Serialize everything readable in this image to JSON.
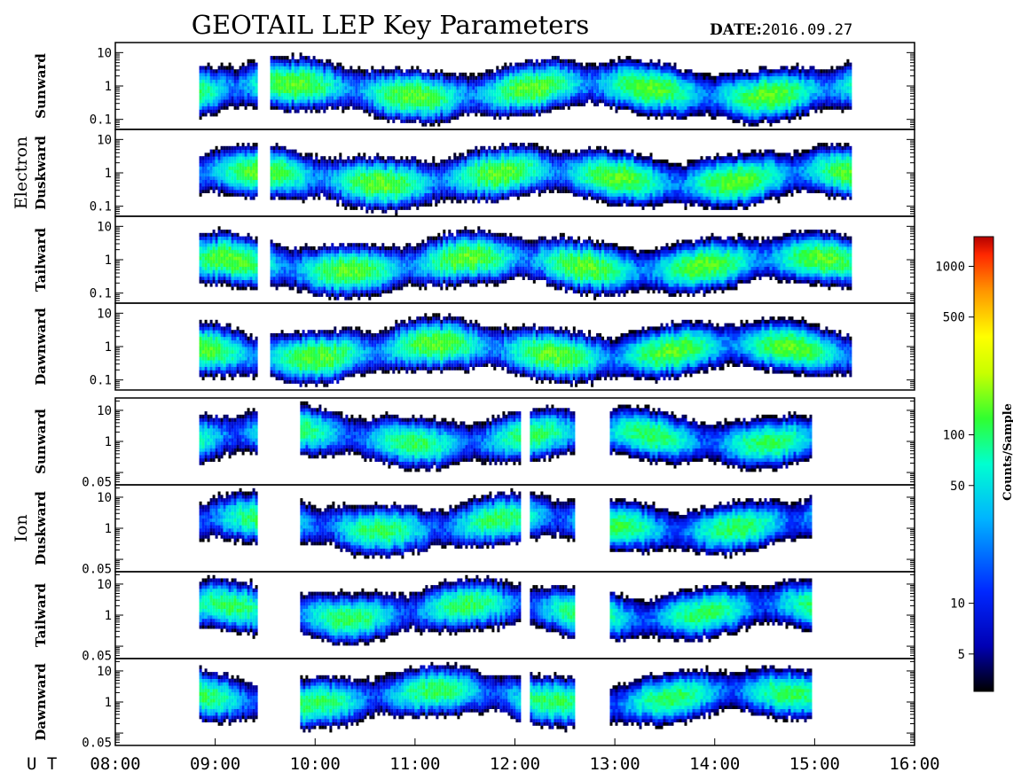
{
  "title": "GEOTAIL LEP Key Parameters",
  "date_label": "DATE:",
  "date_value": "2016.09.27",
  "colorbar": {
    "label": "Counts/Sample",
    "scale": "log",
    "range": [
      3,
      1500
    ],
    "ticks": [
      "5",
      "10",
      "50",
      "100",
      "500",
      "1000"
    ],
    "tick_values": [
      5,
      10,
      50,
      100,
      500,
      1000
    ],
    "colormap": [
      "#000000",
      "#0000b4",
      "#0028ff",
      "#00b4ff",
      "#00ffd0",
      "#30ff30",
      "#c8ff00",
      "#ffff00",
      "#ff9600",
      "#ff2800",
      "#b40000"
    ]
  },
  "chart_data": {
    "type": "heatmap",
    "time_axis": {
      "label": "U T",
      "ticks": [
        "08:00",
        "09:00",
        "10:00",
        "11:00",
        "12:00",
        "13:00",
        "14:00",
        "15:00",
        "16:00"
      ],
      "range_hours": [
        8,
        16
      ]
    },
    "groups": [
      {
        "name": "Electron",
        "panels": [
          {
            "name": "Sunward",
            "y_ticks": [
              "10",
              "1",
              "0.1"
            ]
          },
          {
            "name": "Duskward",
            "y_ticks": [
              "10",
              "1",
              "0.1"
            ]
          },
          {
            "name": "Tailward",
            "y_ticks": [
              "10",
              "1",
              "0.1"
            ]
          },
          {
            "name": "Dawnward",
            "y_ticks": [
              "10",
              "1",
              "0.1"
            ]
          }
        ],
        "y_scale": "log",
        "y_range": [
          0.05,
          20
        ],
        "data_segments_hours": [
          [
            8.84,
            9.4
          ],
          [
            9.55,
            10.0
          ],
          [
            10.0,
            12.0
          ],
          [
            12.02,
            12.6
          ],
          [
            12.6,
            12.95
          ],
          [
            12.95,
            15.0
          ],
          [
            15.0,
            15.35
          ]
        ],
        "peak_counts": 80
      },
      {
        "name": "Ion",
        "panels": [
          {
            "name": "Sunward",
            "y_ticks": [
              "10",
              "1",
              "0.05"
            ]
          },
          {
            "name": "Duskward",
            "y_ticks": [
              "10",
              "1",
              "0.05"
            ]
          },
          {
            "name": "Tailward",
            "y_ticks": [
              "10",
              "1",
              "0.05"
            ]
          },
          {
            "name": "Dawnward",
            "y_ticks": [
              "10",
              "1",
              "0.05"
            ]
          }
        ],
        "y_scale": "log",
        "y_range": [
          0.04,
          25
        ],
        "data_segments_hours": [
          [
            8.84,
            9.4
          ],
          [
            9.85,
            12.05
          ],
          [
            12.15,
            12.6
          ],
          [
            12.95,
            14.95
          ]
        ],
        "peak_counts": 60
      }
    ]
  }
}
